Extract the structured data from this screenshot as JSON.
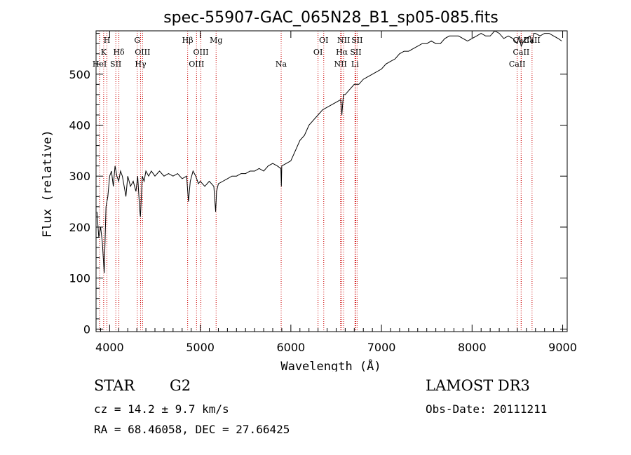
{
  "chart_data": {
    "type": "line",
    "title": "spec-55907-GAC_065N28_B1_sp05-085.fits",
    "xlabel": "Wavelength (Å)",
    "ylabel": "Flux (relative)",
    "xlim": [
      3850,
      9050
    ],
    "ylim": [
      -5,
      585
    ],
    "x_ticks": [
      4000,
      5000,
      6000,
      7000,
      8000,
      9000
    ],
    "y_ticks": [
      0,
      100,
      200,
      300,
      400,
      500
    ],
    "grid": false,
    "series": [
      {
        "x": [
          3860,
          3880,
          3900,
          3920,
          3940,
          3960,
          3980,
          4000,
          4020,
          4040,
          4060,
          4080,
          4100,
          4120,
          4140,
          4160,
          4180,
          4200,
          4230,
          4260,
          4290,
          4310,
          4330,
          4340,
          4360,
          4380,
          4400,
          4430,
          4460,
          4500,
          4550,
          4600,
          4650,
          4700,
          4750,
          4800,
          4850,
          4870,
          4890,
          4920,
          4950,
          4980,
          5000,
          5050,
          5100,
          5150,
          5170,
          5180,
          5200,
          5250,
          5300,
          5350,
          5400,
          5450,
          5500,
          5550,
          5600,
          5650,
          5700,
          5750,
          5800,
          5850,
          5890,
          5895,
          5900,
          5950,
          6000,
          6050,
          6100,
          6150,
          6200,
          6250,
          6300,
          6350,
          6400,
          6450,
          6500,
          6550,
          6563,
          6580,
          6600,
          6650,
          6700,
          6750,
          6800,
          6850,
          6900,
          6950,
          7000,
          7050,
          7100,
          7150,
          7200,
          7250,
          7300,
          7350,
          7400,
          7450,
          7500,
          7550,
          7600,
          7650,
          7700,
          7750,
          7800,
          7850,
          7900,
          7950,
          8000,
          8050,
          8100,
          8150,
          8200,
          8250,
          8300,
          8350,
          8400,
          8450,
          8498,
          8520,
          8542,
          8570,
          8600,
          8640,
          8662,
          8680,
          8700,
          8750,
          8800,
          8850,
          8900,
          8950,
          8990
        ],
        "y": [
          230,
          180,
          200,
          170,
          110,
          240,
          260,
          300,
          310,
          280,
          320,
          300,
          290,
          310,
          300,
          280,
          260,
          300,
          280,
          290,
          270,
          300,
          240,
          220,
          300,
          290,
          310,
          300,
          310,
          300,
          310,
          300,
          305,
          300,
          305,
          295,
          300,
          250,
          290,
          310,
          300,
          285,
          290,
          280,
          290,
          280,
          230,
          270,
          285,
          290,
          295,
          300,
          300,
          305,
          305,
          310,
          310,
          315,
          310,
          320,
          325,
          320,
          315,
          280,
          320,
          325,
          330,
          350,
          370,
          380,
          400,
          410,
          420,
          430,
          435,
          440,
          445,
          450,
          420,
          460,
          460,
          470,
          480,
          480,
          490,
          495,
          500,
          505,
          510,
          520,
          525,
          530,
          540,
          545,
          545,
          550,
          555,
          560,
          560,
          565,
          560,
          560,
          570,
          575,
          575,
          575,
          570,
          565,
          570,
          575,
          580,
          575,
          575,
          585,
          580,
          570,
          575,
          570,
          560,
          575,
          555,
          565,
          570,
          575,
          560,
          580,
          580,
          575,
          580,
          580,
          575,
          570,
          565
        ]
      }
    ],
    "lines": [
      {
        "label": "H",
        "x": 3970,
        "row": 1
      },
      {
        "label": "K",
        "x": 3934,
        "row": 2
      },
      {
        "label": "HeI",
        "x": 3889,
        "row": 3
      },
      {
        "label": "SII",
        "x": 4068,
        "row": 3
      },
      {
        "label": "Hδ",
        "x": 4102,
        "row": 2
      },
      {
        "label": "G",
        "x": 4305,
        "row": 1
      },
      {
        "label": "OIII",
        "x": 4363,
        "row": 2
      },
      {
        "label": "Hγ",
        "x": 4341,
        "row": 3
      },
      {
        "label": "Hβ",
        "x": 4861,
        "row": 1
      },
      {
        "label": "OIII",
        "x": 5007,
        "row": 2
      },
      {
        "label": "OIII",
        "x": 4959,
        "row": 3
      },
      {
        "label": "Mg",
        "x": 5175,
        "row": 1
      },
      {
        "label": "Na",
        "x": 5893,
        "row": 3
      },
      {
        "label": "OI",
        "x": 6363,
        "row": 1
      },
      {
        "label": "OI",
        "x": 6300,
        "row": 2
      },
      {
        "label": "NII",
        "x": 6583,
        "row": 1
      },
      {
        "label": "Hα",
        "x": 6563,
        "row": 2
      },
      {
        "label": "NII",
        "x": 6548,
        "row": 3
      },
      {
        "label": "SII",
        "x": 6731,
        "row": 1
      },
      {
        "label": "SII",
        "x": 6717,
        "row": 2
      },
      {
        "label": "Li",
        "x": 6708,
        "row": 3
      },
      {
        "label": "CaII",
        "x": 8542,
        "row": 1
      },
      {
        "label": "CaII",
        "x": 8498,
        "row": 3
      },
      {
        "label": "CaII",
        "x": 8542,
        "row": 2
      },
      {
        "label": "CaII",
        "x": 8662,
        "row": 1
      }
    ]
  },
  "info": {
    "class": "STAR",
    "subclass": "G2",
    "survey": "LAMOST DR3",
    "cz": "cz = 14.2 ± 9.7 km/s",
    "obsdate": "Obs-Date: 20111211",
    "coords": "RA =  68.46058, DEC =  27.66425"
  },
  "colors": {
    "spectrum": "#000000",
    "line_markers": "#cc0000"
  }
}
